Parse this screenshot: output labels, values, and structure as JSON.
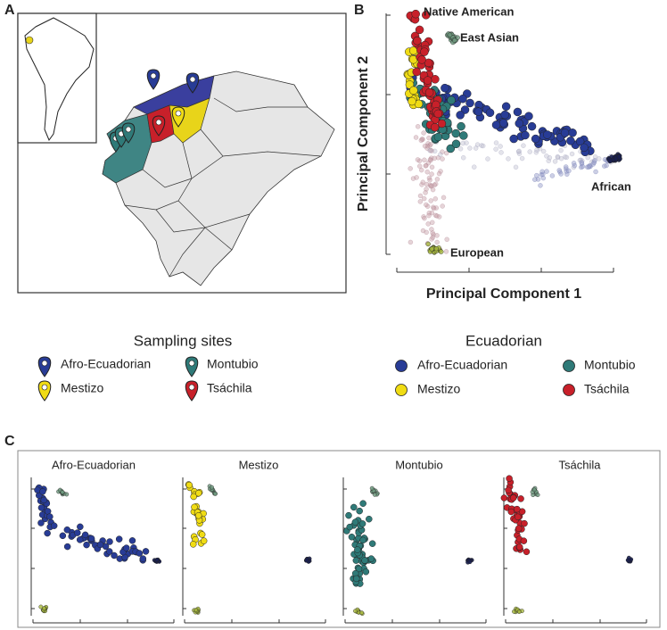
{
  "panels": {
    "a": "A",
    "b": "B",
    "c": "C"
  },
  "populations": [
    {
      "name": "Afro-Ecuadorian",
      "color": "#283c96"
    },
    {
      "name": "Mestizo",
      "color": "#f0dc14"
    },
    {
      "name": "Montubio",
      "color": "#2f7a78"
    },
    {
      "name": "Tsáchila",
      "color": "#c8202a"
    }
  ],
  "map_legend": {
    "title": "Sampling sites"
  },
  "pca": {
    "x_label": "Principal Component 1",
    "y_label": "Principal Component 2",
    "reference_labels": [
      "Native American",
      "East Asian",
      "African",
      "European"
    ]
  },
  "pca_legend": {
    "title": "Ecuadorian"
  }
}
